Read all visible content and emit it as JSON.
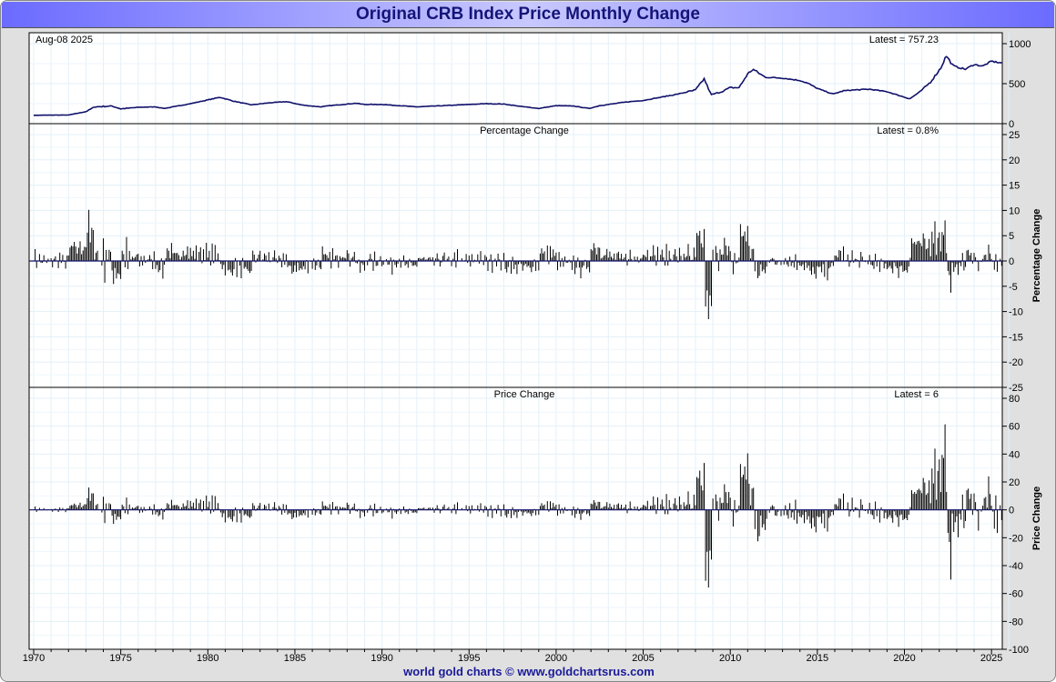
{
  "chart_data": {
    "title": "Original CRB Index Price Monthly Change",
    "footer": "world gold charts © www.goldchartsrus.com",
    "date_label": "Aug-08  2025",
    "x_ticks": [
      "1970",
      "1975",
      "1980",
      "1985",
      "1990",
      "1995",
      "2000",
      "2005",
      "2010",
      "2015",
      "2020",
      "2025"
    ],
    "x_range": [
      1970,
      2025.6
    ],
    "panels": [
      {
        "type": "line",
        "name": "CRB Index",
        "latest": "Latest = 757.23",
        "ylim": [
          0,
          1000
        ],
        "yticks": [
          "1000",
          "500",
          "0"
        ],
        "series": [
          [
            1970,
            105
          ],
          [
            1972,
            108
          ],
          [
            1973,
            150
          ],
          [
            1973.5,
            210
          ],
          [
            1974.5,
            220
          ],
          [
            1975,
            185
          ],
          [
            1976,
            205
          ],
          [
            1977,
            210
          ],
          [
            1977.5,
            190
          ],
          [
            1978,
            210
          ],
          [
            1979,
            250
          ],
          [
            1980.7,
            330
          ],
          [
            1981.5,
            280
          ],
          [
            1982.5,
            235
          ],
          [
            1983.5,
            260
          ],
          [
            1984.5,
            275
          ],
          [
            1985.5,
            230
          ],
          [
            1986.5,
            210
          ],
          [
            1987,
            225
          ],
          [
            1988.5,
            255
          ],
          [
            1989,
            240
          ],
          [
            1990,
            240
          ],
          [
            1991,
            225
          ],
          [
            1992,
            210
          ],
          [
            1993,
            220
          ],
          [
            1994,
            230
          ],
          [
            1995,
            240
          ],
          [
            1996,
            250
          ],
          [
            1997,
            245
          ],
          [
            1998,
            215
          ],
          [
            1999,
            190
          ],
          [
            2000,
            225
          ],
          [
            2001,
            220
          ],
          [
            2001.9,
            190
          ],
          [
            2002.5,
            225
          ],
          [
            2003,
            240
          ],
          [
            2004,
            270
          ],
          [
            2005,
            290
          ],
          [
            2006,
            330
          ],
          [
            2007,
            370
          ],
          [
            2008,
            420
          ],
          [
            2008.5,
            560
          ],
          [
            2008.9,
            360
          ],
          [
            2009.5,
            400
          ],
          [
            2010,
            450
          ],
          [
            2010.5,
            450
          ],
          [
            2011,
            620
          ],
          [
            2011.3,
            680
          ],
          [
            2012,
            580
          ],
          [
            2013,
            570
          ],
          [
            2014,
            540
          ],
          [
            2014.5,
            500
          ],
          [
            2015,
            440
          ],
          [
            2015.9,
            370
          ],
          [
            2016.5,
            410
          ],
          [
            2017,
            420
          ],
          [
            2018,
            430
          ],
          [
            2019,
            400
          ],
          [
            2020.3,
            310
          ],
          [
            2020.9,
            400
          ],
          [
            2021.5,
            520
          ],
          [
            2022.1,
            700
          ],
          [
            2022.4,
            850
          ],
          [
            2022.8,
            720
          ],
          [
            2023.5,
            680
          ],
          [
            2024,
            740
          ],
          [
            2024.5,
            720
          ],
          [
            2025,
            780
          ],
          [
            2025.6,
            757.23
          ]
        ]
      },
      {
        "type": "bar",
        "name": "Percentage Change",
        "ylabel": "Percentage Change",
        "latest": "Latest = 0.8%",
        "ylim": [
          -25,
          25
        ],
        "yticks": [
          "25",
          "20",
          "15",
          "10",
          "5",
          "0",
          "-5",
          "-10",
          "-15",
          "-20",
          "-25"
        ]
      },
      {
        "type": "bar",
        "name": "Price Change",
        "ylabel": "Price Change",
        "latest": "Latest = 6",
        "ylim": [
          -100,
          80
        ],
        "yticks": [
          "80",
          "60",
          "40",
          "20",
          "0",
          "-20",
          "-40",
          "-60",
          "-80",
          "-100"
        ]
      }
    ]
  }
}
